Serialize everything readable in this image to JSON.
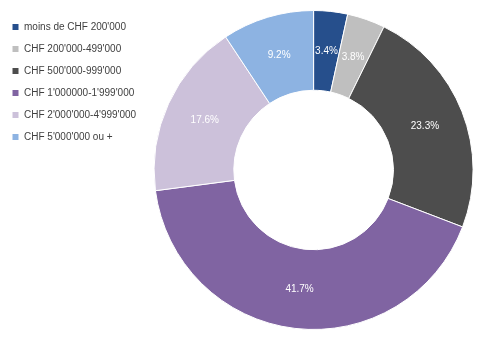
{
  "chart_data": {
    "type": "doughnut",
    "categories": [
      "moins de CHF 200'000",
      "CHF 200'000-499'000",
      "CHF 500'000-999'000",
      "CHF 1'000000-1'999'000",
      "CHF 2'000'000-4'999'000",
      "CHF 5'000'000 ou +"
    ],
    "values": [
      3.4,
      3.8,
      23.3,
      41.7,
      17.6,
      9.2
    ],
    "value_labels": [
      "3.4%",
      "3.8%",
      "23.3%",
      "41.7%",
      "17.6%",
      "9.2%"
    ],
    "colors": [
      "#264f8c",
      "#bfbfbf",
      "#4d4d4d",
      "#8064a2",
      "#ccc1da",
      "#8db3e2"
    ],
    "data_labels": true,
    "legend": "top-left"
  }
}
